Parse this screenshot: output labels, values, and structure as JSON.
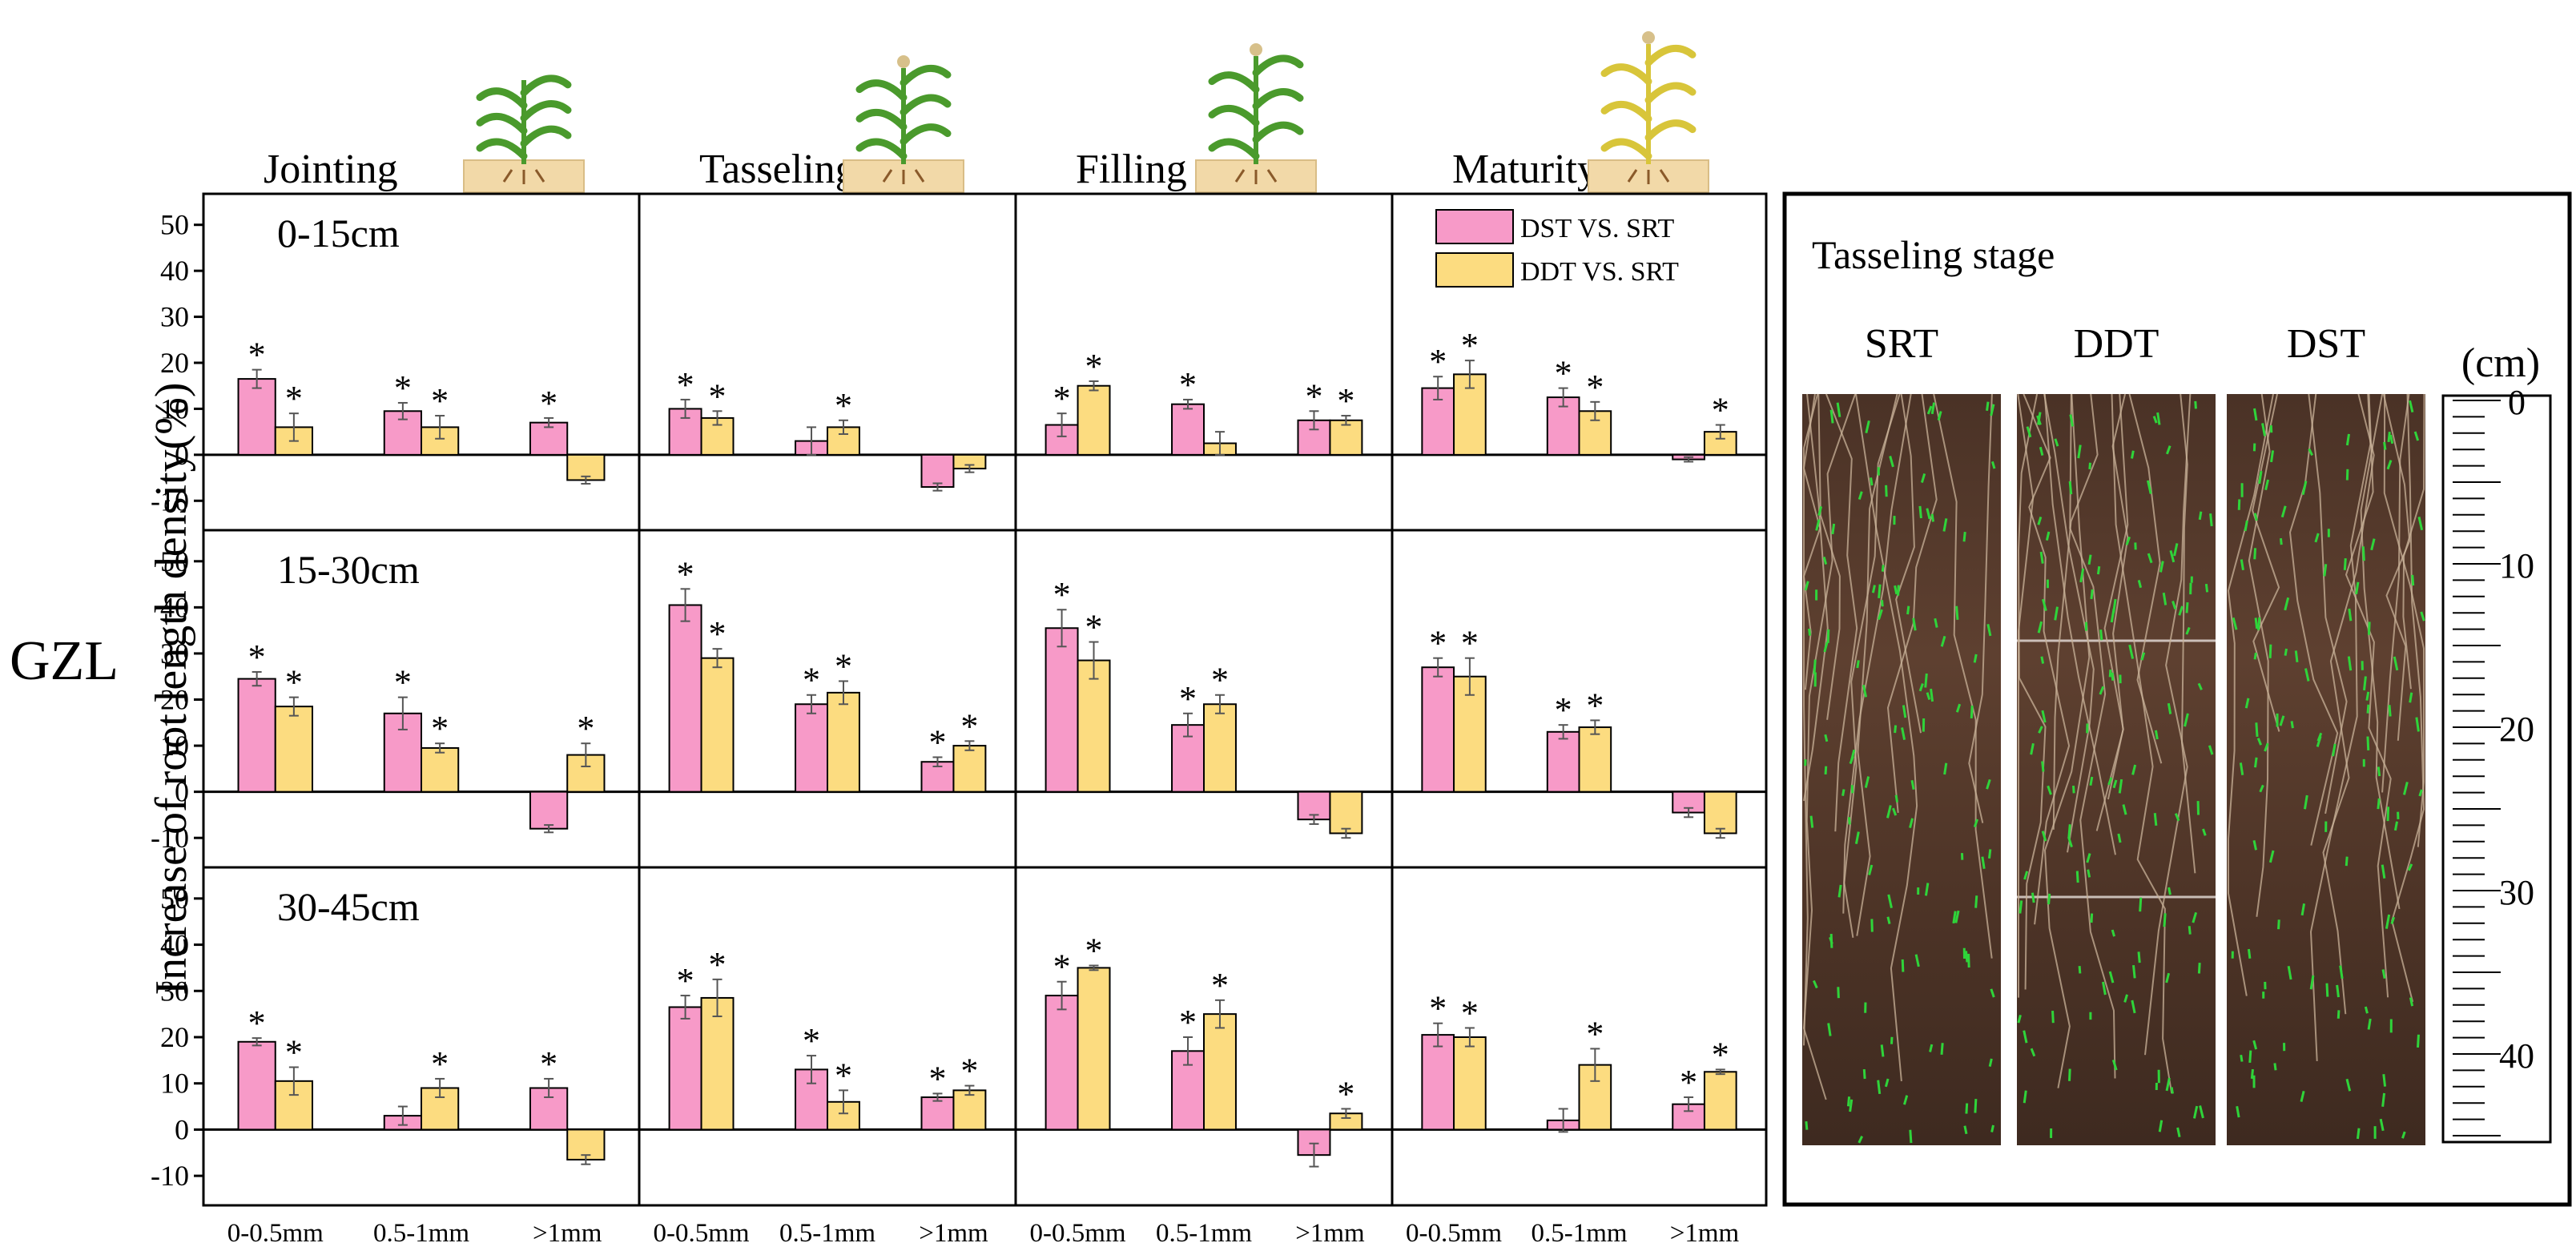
{
  "figure": {
    "site_label": "GZL",
    "ylabel": "Increase of root length density(%)",
    "stages": [
      "Jointing",
      "Tasseling",
      "Filling",
      "Maturity"
    ],
    "depths": [
      "0-15cm",
      "15-30cm",
      "30-45cm"
    ],
    "legend": [
      {
        "label": "DST VS. SRT",
        "color": "#f79ac8"
      },
      {
        "label": "DDT VS. SRT",
        "color": "#fcdc80"
      }
    ],
    "photo_panel": {
      "title": "Tasseling stage",
      "columns": [
        "SRT",
        "DDT",
        "DST"
      ],
      "ruler_unit": "(cm)",
      "ruler_labels": [
        "0",
        "10",
        "20",
        "30",
        "40"
      ]
    }
  },
  "chart_data": {
    "type": "bar",
    "categories": [
      "0-0.5mm",
      "0.5-1mm",
      ">1mm"
    ],
    "series_names": [
      "DST VS. SRT",
      "DDT VS. SRT"
    ],
    "ylim": [
      -15,
      55
    ],
    "yticks": [
      -10,
      0,
      10,
      20,
      30,
      40,
      50
    ],
    "panels": [
      {
        "stage": "Jointing",
        "depth": "0-15cm",
        "dst": [
          16.5,
          9.5,
          7
        ],
        "dst_err": [
          2,
          1.8,
          1
        ],
        "dst_sig": [
          true,
          true,
          true
        ],
        "ddt": [
          6,
          6,
          -5.5
        ],
        "ddt_err": [
          3,
          2.5,
          0.8
        ],
        "ddt_sig": [
          true,
          true,
          false
        ]
      },
      {
        "stage": "Tasseling",
        "depth": "0-15cm",
        "dst": [
          10,
          3,
          -7
        ],
        "dst_err": [
          2,
          3,
          0.8
        ],
        "dst_sig": [
          true,
          false,
          false
        ],
        "ddt": [
          8,
          6,
          -3
        ],
        "ddt_err": [
          1.5,
          1.5,
          0.8
        ],
        "ddt_sig": [
          true,
          true,
          false
        ]
      },
      {
        "stage": "Filling",
        "depth": "0-15cm",
        "dst": [
          6.5,
          11,
          7.5
        ],
        "dst_err": [
          2.5,
          1,
          2
        ],
        "dst_sig": [
          true,
          true,
          true
        ],
        "ddt": [
          15,
          2.5,
          7.5
        ],
        "ddt_err": [
          1,
          2.5,
          1
        ],
        "ddt_sig": [
          true,
          false,
          true
        ]
      },
      {
        "stage": "Maturity",
        "depth": "0-15cm",
        "dst": [
          14.5,
          12.5,
          -1
        ],
        "dst_err": [
          2.5,
          2,
          0.5
        ],
        "dst_sig": [
          true,
          true,
          false
        ],
        "ddt": [
          17.5,
          9.5,
          5
        ],
        "ddt_err": [
          3,
          2,
          1.5
        ],
        "ddt_sig": [
          true,
          true,
          true
        ]
      },
      {
        "stage": "Jointing",
        "depth": "15-30cm",
        "dst": [
          24.5,
          17,
          -8
        ],
        "dst_err": [
          1.5,
          3.5,
          0.8
        ],
        "dst_sig": [
          true,
          true,
          false
        ],
        "ddt": [
          18.5,
          9.5,
          8
        ],
        "ddt_err": [
          2,
          1,
          2.5
        ],
        "ddt_sig": [
          true,
          true,
          true
        ]
      },
      {
        "stage": "Tasseling",
        "depth": "15-30cm",
        "dst": [
          40.5,
          19,
          6.5
        ],
        "dst_err": [
          3.5,
          2,
          1
        ],
        "dst_sig": [
          true,
          true,
          true
        ],
        "ddt": [
          29,
          21.5,
          10
        ],
        "ddt_err": [
          2,
          2.5,
          1
        ],
        "ddt_sig": [
          true,
          true,
          true
        ]
      },
      {
        "stage": "Filling",
        "depth": "15-30cm",
        "dst": [
          35.5,
          14.5,
          -6
        ],
        "dst_err": [
          4,
          2.5,
          1
        ],
        "dst_sig": [
          true,
          true,
          false
        ],
        "ddt": [
          28.5,
          19,
          -9
        ],
        "ddt_err": [
          4,
          2,
          1
        ],
        "ddt_sig": [
          true,
          true,
          false
        ]
      },
      {
        "stage": "Maturity",
        "depth": "15-30cm",
        "dst": [
          27,
          13,
          -4.5
        ],
        "dst_err": [
          2,
          1.5,
          1
        ],
        "dst_sig": [
          true,
          true,
          false
        ],
        "ddt": [
          25,
          14,
          -9
        ],
        "ddt_err": [
          4,
          1.5,
          1
        ],
        "ddt_sig": [
          true,
          true,
          false
        ]
      },
      {
        "stage": "Jointing",
        "depth": "30-45cm",
        "dst": [
          19,
          3,
          9
        ],
        "dst_err": [
          0.8,
          2,
          2
        ],
        "dst_sig": [
          true,
          false,
          true
        ],
        "ddt": [
          10.5,
          9,
          -6.5
        ],
        "ddt_err": [
          3,
          2,
          1
        ],
        "ddt_sig": [
          true,
          true,
          false
        ]
      },
      {
        "stage": "Tasseling",
        "depth": "30-45cm",
        "dst": [
          26.5,
          13,
          7
        ],
        "dst_err": [
          2.5,
          3,
          0.8
        ],
        "dst_sig": [
          true,
          true,
          true
        ],
        "ddt": [
          28.5,
          6,
          8.5
        ],
        "ddt_err": [
          4,
          2.5,
          1
        ],
        "ddt_sig": [
          true,
          true,
          true
        ]
      },
      {
        "stage": "Filling",
        "depth": "30-45cm",
        "dst": [
          29,
          17,
          -5.5
        ],
        "dst_err": [
          3,
          3,
          2.5
        ],
        "dst_sig": [
          true,
          true,
          false
        ],
        "ddt": [
          35,
          25,
          3.5
        ],
        "ddt_err": [
          0.5,
          3,
          1
        ],
        "ddt_sig": [
          true,
          true,
          true
        ]
      },
      {
        "stage": "Maturity",
        "depth": "30-45cm",
        "dst": [
          20.5,
          2,
          5.5
        ],
        "dst_err": [
          2.5,
          2.5,
          1.5
        ],
        "dst_sig": [
          true,
          false,
          true
        ],
        "ddt": [
          20,
          14,
          12.5
        ],
        "ddt_err": [
          2,
          3.5,
          0.5
        ],
        "ddt_sig": [
          true,
          true,
          true
        ]
      }
    ]
  }
}
